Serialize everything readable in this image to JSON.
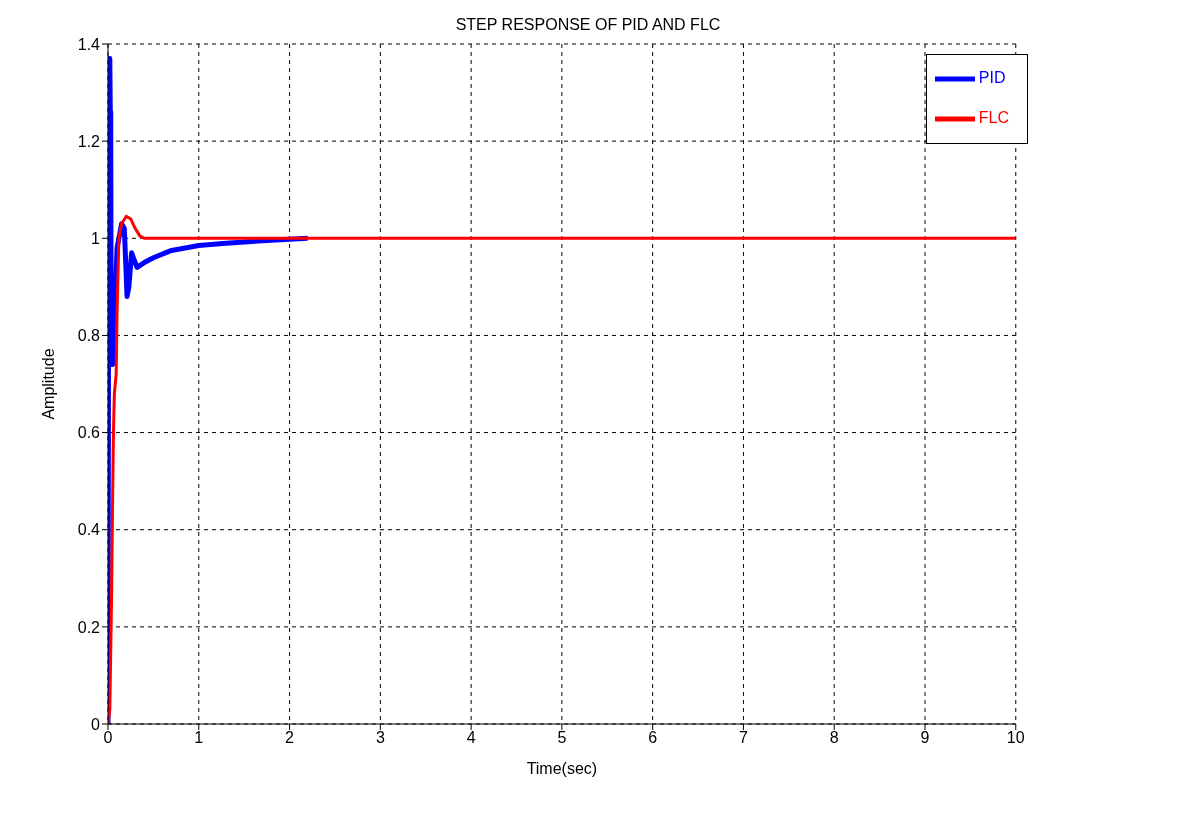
{
  "chart_data": {
    "type": "line",
    "title": "STEP RESPONSE OF PID AND FLC",
    "xlabel": "Time(sec)",
    "ylabel": "Amplitude",
    "xlim": [
      0,
      10
    ],
    "xticks": [
      0,
      1,
      2,
      3,
      4,
      5,
      6,
      7,
      8,
      9,
      10
    ],
    "ylim": [
      0,
      1.4
    ],
    "yticks": [
      0,
      0.2,
      0.4,
      0.6,
      0.8,
      1,
      1.2,
      1.4
    ],
    "grid": true,
    "legend": "top right",
    "marker": "none",
    "line_style": "solid",
    "series": [
      {
        "name": "PID",
        "color": "#0000ff",
        "x": [
          0,
          0.01,
          0.02,
          0.025,
          0.03,
          0.035,
          0.05,
          0.1,
          0.15,
          0.18,
          0.21,
          0.23,
          0.26,
          0.3,
          0.32,
          0.4,
          0.5,
          0.7,
          1.0,
          1.3,
          1.7,
          2.2
        ],
        "values": [
          0,
          1.37,
          1.37,
          1.26,
          1.26,
          0.74,
          0.74,
          0.98,
          1.03,
          1.02,
          0.88,
          0.9,
          0.97,
          0.95,
          0.94,
          0.95,
          0.96,
          0.975,
          0.985,
          0.99,
          0.995,
          1.0
        ]
      },
      {
        "name": "FLC",
        "color": "#ff0000",
        "x": [
          0,
          0.02,
          0.03,
          0.04,
          0.05,
          0.06,
          0.07,
          0.09,
          0.1,
          0.12,
          0.15,
          0.2,
          0.25,
          0.3,
          0.35,
          0.4,
          1,
          2,
          5,
          10
        ],
        "values": [
          0,
          0.03,
          0.15,
          0.27,
          0.45,
          0.6,
          0.68,
          0.72,
          0.85,
          1.0,
          1.03,
          1.045,
          1.04,
          1.02,
          1.005,
          1.0,
          1.0,
          1.0,
          1.0,
          1.0
        ]
      }
    ]
  }
}
